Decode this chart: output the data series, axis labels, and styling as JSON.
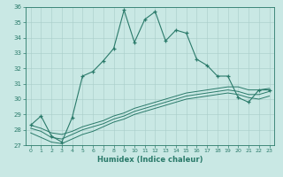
{
  "xlabel": "Humidex (Indice chaleur)",
  "xlim": [
    -0.5,
    23.5
  ],
  "ylim": [
    27,
    36
  ],
  "xticks": [
    0,
    1,
    2,
    3,
    4,
    5,
    6,
    7,
    8,
    9,
    10,
    11,
    12,
    13,
    14,
    15,
    16,
    17,
    18,
    19,
    20,
    21,
    22,
    23
  ],
  "yticks": [
    27,
    28,
    29,
    30,
    31,
    32,
    33,
    34,
    35,
    36
  ],
  "bg_color": "#c9e8e4",
  "line_color": "#2a7a6a",
  "grid_color": "#a8ccc8",
  "main_line": [
    28.3,
    28.9,
    27.6,
    27.2,
    28.8,
    31.5,
    31.8,
    32.5,
    33.3,
    35.8,
    33.7,
    35.2,
    35.7,
    33.8,
    34.5,
    34.3,
    32.6,
    32.2,
    31.5,
    31.5,
    30.1,
    29.8,
    30.6,
    30.6
  ],
  "lower_line1": [
    28.3,
    28.1,
    27.8,
    27.7,
    27.9,
    28.2,
    28.4,
    28.6,
    28.9,
    29.1,
    29.4,
    29.6,
    29.8,
    30.0,
    30.2,
    30.4,
    30.5,
    30.6,
    30.7,
    30.8,
    30.8,
    30.6,
    30.6,
    30.7
  ],
  "lower_line2": [
    28.1,
    27.9,
    27.5,
    27.4,
    27.7,
    28.0,
    28.2,
    28.4,
    28.7,
    28.9,
    29.2,
    29.4,
    29.6,
    29.8,
    30.0,
    30.2,
    30.3,
    30.4,
    30.5,
    30.6,
    30.5,
    30.3,
    30.3,
    30.5
  ],
  "lower_line3": [
    27.8,
    27.5,
    27.2,
    27.1,
    27.4,
    27.7,
    27.9,
    28.2,
    28.5,
    28.7,
    29.0,
    29.2,
    29.4,
    29.6,
    29.8,
    30.0,
    30.1,
    30.2,
    30.3,
    30.4,
    30.3,
    30.1,
    30.0,
    30.2
  ]
}
